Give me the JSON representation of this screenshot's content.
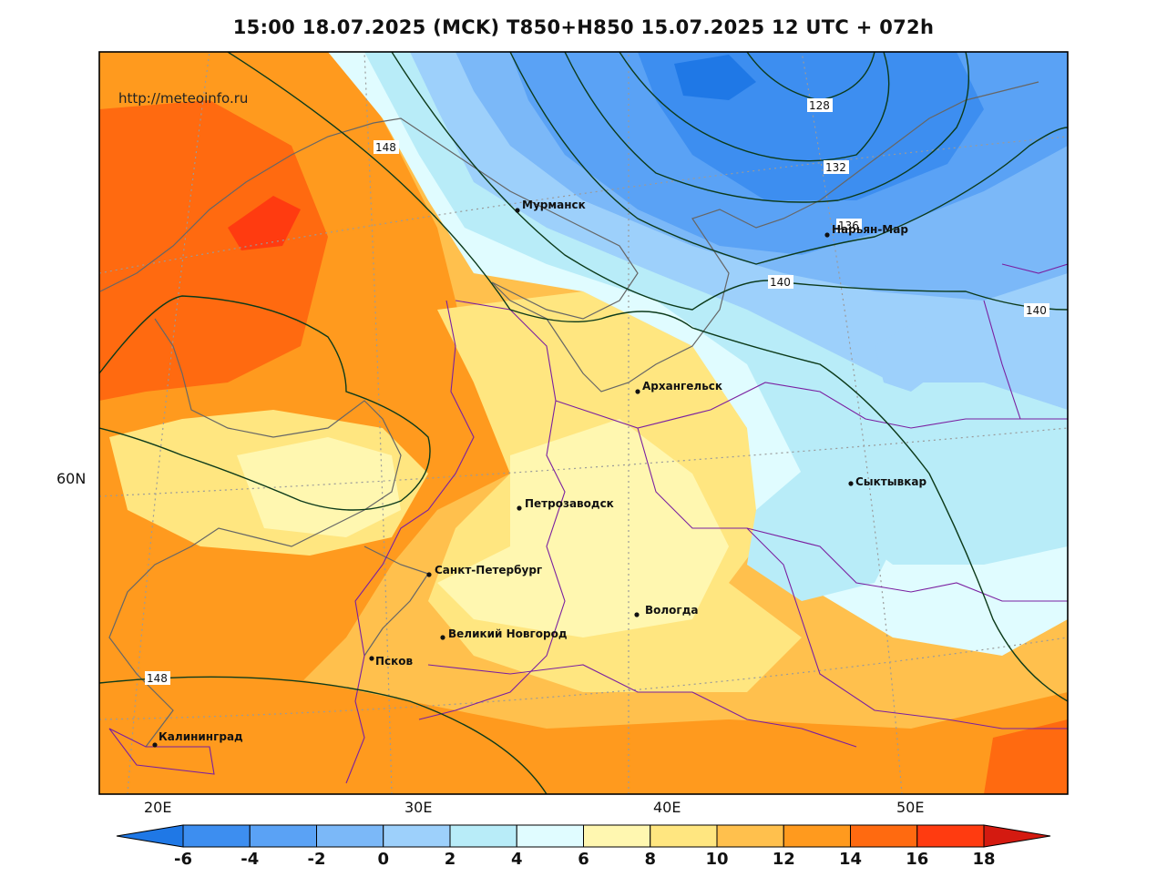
{
  "title": "15:00 18.07.2025 (MCK) T850+H850 15.07.2025 12 UTC + 072h",
  "watermark": "http://meteoinfo.ru",
  "axes": {
    "lon_labels": [
      "20E",
      "30E",
      "40E",
      "50E"
    ],
    "lat_labels": [
      "60N"
    ]
  },
  "cities": [
    {
      "name": "Мурманск"
    },
    {
      "name": "Нарьян-Мар"
    },
    {
      "name": "Архангельск"
    },
    {
      "name": "Сыктывкар"
    },
    {
      "name": "Петрозаводск"
    },
    {
      "name": "Санкт-Петербург"
    },
    {
      "name": "Вологда"
    },
    {
      "name": "Великий Новгород"
    },
    {
      "name": "Псков"
    },
    {
      "name": "Калининград"
    }
  ],
  "contour_labels": [
    "148",
    "128",
    "132",
    "136",
    "140",
    "140",
    "148"
  ],
  "colorbar": {
    "ticks": [
      "-6",
      "-4",
      "-2",
      "0",
      "2",
      "4",
      "6",
      "8",
      "10",
      "12",
      "14",
      "16",
      "18"
    ],
    "colors": [
      "#1f78e6",
      "#3d8ef0",
      "#5aa2f5",
      "#7bb8f8",
      "#9dd0fb",
      "#b8ecf8",
      "#e0fcff",
      "#fff7b0",
      "#ffe680",
      "#ffc04d",
      "#ff9a1e",
      "#ff6a10",
      "#ff3b10",
      "#d41a10"
    ]
  }
}
